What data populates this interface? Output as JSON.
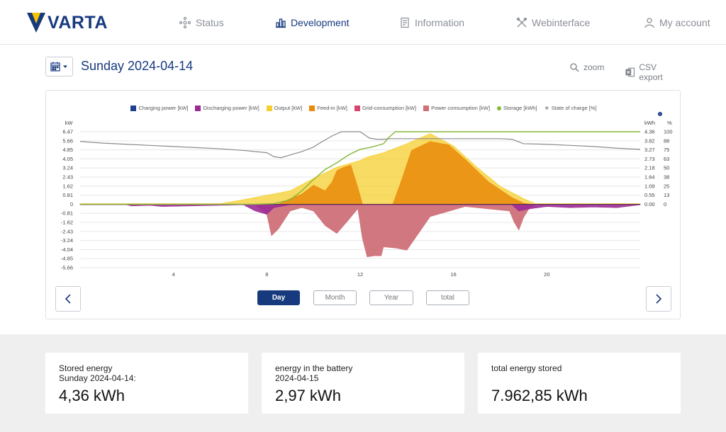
{
  "brand": {
    "name": "VARTA",
    "colors": {
      "blue": "#173a7e",
      "yellow": "#f5c400"
    }
  },
  "nav": [
    {
      "label": "Status",
      "icon": "status-icon"
    },
    {
      "label": "Development",
      "icon": "bar-chart-icon",
      "active": true
    },
    {
      "label": "Information",
      "icon": "document-icon"
    },
    {
      "label": "Webinterface",
      "icon": "tools-icon"
    },
    {
      "label": "My account",
      "icon": "user-icon"
    }
  ],
  "datebar": {
    "date_title": "Sunday 2024-04-14",
    "zoom_label": "zoom",
    "csv_label": "CSV export"
  },
  "legend": [
    {
      "label": "Charging power [kW]",
      "color": "#1f3f8f"
    },
    {
      "label": "Discharging power [kW]",
      "color": "#9b2a95"
    },
    {
      "label": "Output [kW]",
      "color": "#f5cf2d"
    },
    {
      "label": "Feed-in [kW]",
      "color": "#ea8a0a"
    },
    {
      "label": "Grid-consumption [kW]",
      "color": "#d4476f"
    },
    {
      "label": "Power consumption [kW]",
      "color": "#cf7079"
    },
    {
      "label": "Storage [kWh]",
      "color": "#86b83a"
    },
    {
      "label": "State of charge [%]",
      "color": "#8a8a8a"
    }
  ],
  "chart_data": {
    "type": "area",
    "axis_left_unit": "kW",
    "axis_right_unit1": "kWh",
    "axis_right_unit2": "%",
    "info_glyph": "i",
    "xlim": [
      0,
      24
    ],
    "x_ticks": [
      "4",
      "8",
      "12",
      "16",
      "20"
    ],
    "x_tick_values": [
      4,
      8,
      12,
      16,
      20
    ],
    "ylim": [
      -5.66,
      6.47
    ],
    "y_ticks": [
      "6.47",
      "5.66",
      "4.85",
      "4.05",
      "3.24",
      "2.43",
      "1.62",
      "0.81",
      "0",
      "-0.81",
      "-1.62",
      "-2.43",
      "-3.24",
      "-4.04",
      "-4.85",
      "-5.66"
    ],
    "y_tick_values": [
      6.47,
      5.66,
      4.85,
      4.05,
      3.24,
      2.43,
      1.62,
      0.81,
      0,
      -0.81,
      -1.62,
      -2.43,
      -3.24,
      -4.04,
      -4.85,
      -5.66
    ],
    "right_kwh_ticks": [
      "4.36",
      "3.82",
      "3.27",
      "2.73",
      "2.18",
      "1.64",
      "1.09",
      "0.55",
      "0.00"
    ],
    "right_pct_ticks": [
      "100",
      "88",
      "75",
      "63",
      "50",
      "38",
      "25",
      "13",
      "0"
    ],
    "right_tick_values_kw": [
      6.47,
      5.66,
      4.85,
      4.05,
      3.24,
      2.43,
      1.62,
      0.81,
      0
    ],
    "series": [
      {
        "name": "Output [kW]",
        "color": "#f5cf2d",
        "x": [
          0,
          6,
          7,
          8,
          9,
          10,
          11,
          12,
          12.3,
          13,
          14,
          15,
          16,
          17,
          18,
          19,
          19.5,
          24
        ],
        "y": [
          0.05,
          0.05,
          0.4,
          0.8,
          1.2,
          2.3,
          3.3,
          3.9,
          4.2,
          4.6,
          5.4,
          6.3,
          5.2,
          3.3,
          1.6,
          0.5,
          0.05,
          0.05
        ]
      },
      {
        "name": "Feed-in [kW]",
        "color": "#ea8a0a",
        "x": [
          0,
          8.5,
          9,
          9.5,
          10,
          10.5,
          10.8,
          11,
          11.3,
          11.6,
          11.9,
          12.1,
          12.4,
          13.4,
          13.8,
          14.2,
          15,
          15.8,
          16.5,
          17.5,
          18.5,
          19,
          19.3,
          24
        ],
        "y": [
          0,
          0,
          0.5,
          0.9,
          1.7,
          1.2,
          2.0,
          3.0,
          3.3,
          3.5,
          1.5,
          0,
          0,
          0,
          2.3,
          4.8,
          5.6,
          5.3,
          4.0,
          2.0,
          0.6,
          0.1,
          0,
          0
        ]
      },
      {
        "name": "Power consumption [kW]",
        "color": "#cf7079",
        "x": [
          0,
          7.4,
          7.6,
          8,
          8.2,
          8.5,
          9,
          9.5,
          10,
          10.5,
          11,
          11.5,
          11.9,
          12.1,
          12.3,
          12.6,
          12.9,
          13,
          13.5,
          14,
          15,
          16,
          16.5,
          18.4,
          18.6,
          18.8,
          19,
          19.2,
          19.5,
          24
        ],
        "y": [
          0,
          0,
          -0.2,
          -0.9,
          -2.8,
          -2.2,
          -0.6,
          -0.3,
          -0.6,
          -1.9,
          -2.6,
          -1.4,
          -0.4,
          -3.1,
          -4.7,
          -4.6,
          -4.6,
          -3.8,
          -3.9,
          -4.1,
          -1.1,
          -0.5,
          -0.2,
          -0.6,
          -1.6,
          -2.3,
          -1.2,
          -0.5,
          0,
          0
        ]
      },
      {
        "name": "Discharging power [kW]",
        "color": "#9b2a95",
        "x": [
          0,
          2,
          2.2,
          3,
          3.5,
          7,
          7.5,
          8,
          8.3,
          9,
          18.5,
          18.8,
          19.3,
          20,
          21,
          22,
          23,
          24
        ],
        "y": [
          -0.05,
          -0.05,
          -0.15,
          -0.1,
          -0.2,
          -0.05,
          -0.6,
          -0.9,
          -0.3,
          -0.05,
          -0.05,
          -0.6,
          -0.4,
          -0.2,
          -0.3,
          -0.25,
          -0.3,
          -0.05
        ]
      },
      {
        "name": "Storage [kWh]",
        "color": "#86b83a",
        "x": [
          0,
          7.5,
          8.3,
          9,
          9.5,
          10,
          10.5,
          11,
          11.5,
          12,
          12.5,
          13,
          13.2,
          13.5,
          24
        ],
        "y": [
          0,
          0,
          0.05,
          0.4,
          1.2,
          2.2,
          3.1,
          3.7,
          4.4,
          4.9,
          5.1,
          5.4,
          5.9,
          6.47,
          6.47
        ]
      },
      {
        "name": "State of charge [%]",
        "color": "#8a8a8a",
        "x": [
          0,
          1,
          2,
          3,
          4,
          5,
          6,
          7,
          8,
          8.3,
          8.6,
          9,
          9.5,
          10,
          10.3,
          10.8,
          11.2,
          12,
          12.4,
          12.7,
          13,
          13.3,
          18,
          18.5,
          19,
          20,
          21,
          22,
          23,
          24
        ],
        "y": [
          5.6,
          5.45,
          5.35,
          5.25,
          5.15,
          5.05,
          4.95,
          4.8,
          4.6,
          4.25,
          4.15,
          4.4,
          4.7,
          5.1,
          5.5,
          6.1,
          6.47,
          6.47,
          5.9,
          5.8,
          5.8,
          5.85,
          5.85,
          5.8,
          5.4,
          5.35,
          5.25,
          5.15,
          5.0,
          4.9
        ]
      }
    ]
  },
  "periods": {
    "day": "Day",
    "month": "Month",
    "year": "Year",
    "total": "total"
  },
  "stats": [
    {
      "label1": "Stored energy",
      "label2": "Sunday 2024-04-14:",
      "value": "4,36 kWh"
    },
    {
      "label1": "energy in the battery",
      "label2": "2024-04-15",
      "value": "2,97 kWh"
    },
    {
      "label1": "total energy stored",
      "label2": "",
      "value": "7.962,85 kWh"
    }
  ]
}
